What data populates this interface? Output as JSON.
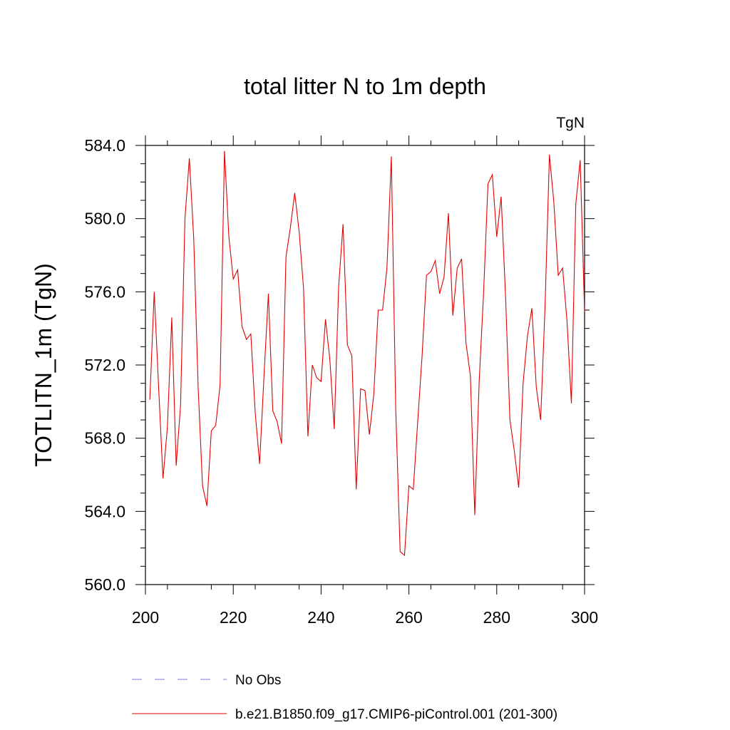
{
  "chart_data": {
    "type": "line",
    "title": "total litter N to 1m depth",
    "units_label": "TgN",
    "xlabel": "",
    "ylabel": "TOTLITN_1m  (TgN)",
    "xlim": [
      200,
      300
    ],
    "ylim": [
      560,
      584
    ],
    "x_ticks": [
      "200",
      "220",
      "240",
      "260",
      "280",
      "300"
    ],
    "y_ticks": [
      "560.0",
      "564.0",
      "568.0",
      "572.0",
      "576.0",
      "580.0",
      "584.0"
    ],
    "grid": false,
    "legend": [
      {
        "name": "No Obs",
        "color": "#7b7bd6",
        "style": "dashed"
      },
      {
        "name": "b.e21.B1850.f09_g17.CMIP6-piControl.001 (201-300)",
        "color": "#e00000",
        "style": "solid"
      }
    ],
    "series": [
      {
        "name": "b.e21.B1850.f09_g17.CMIP6-piControl.001 (201-300)",
        "color": "#e00000",
        "x": [
          201,
          202,
          203,
          204,
          205,
          206,
          207,
          208,
          209,
          210,
          211,
          212,
          213,
          214,
          215,
          216,
          217,
          218,
          219,
          220,
          221,
          222,
          223,
          224,
          225,
          226,
          227,
          228,
          229,
          230,
          231,
          232,
          233,
          234,
          235,
          236,
          237,
          238,
          239,
          240,
          241,
          242,
          243,
          244,
          245,
          246,
          247,
          248,
          249,
          250,
          251,
          252,
          253,
          254,
          255,
          256,
          257,
          258,
          259,
          260,
          261,
          262,
          263,
          264,
          265,
          266,
          267,
          268,
          269,
          270,
          271,
          272,
          273,
          274,
          275,
          276,
          277,
          278,
          279,
          280,
          281,
          282,
          283,
          284,
          285,
          286,
          287,
          288,
          289,
          290,
          291,
          292,
          293,
          294,
          295,
          296,
          297,
          298,
          299,
          300
        ],
        "values": [
          570.1,
          576.0,
          570.8,
          565.8,
          568.6,
          574.6,
          566.5,
          569.8,
          580.0,
          583.3,
          578.9,
          570.8,
          565.4,
          564.3,
          568.4,
          568.7,
          570.9,
          583.7,
          579.0,
          576.7,
          577.2,
          574.1,
          573.4,
          573.7,
          569.4,
          566.6,
          571.4,
          575.9,
          569.5,
          568.9,
          567.7,
          577.9,
          579.5,
          581.4,
          579.3,
          576.2,
          568.1,
          572.0,
          571.3,
          571.1,
          574.5,
          572.3,
          568.5,
          576.3,
          579.7,
          573.1,
          572.5,
          565.2,
          570.7,
          570.6,
          568.2,
          570.4,
          575.0,
          575.0,
          577.3,
          583.4,
          569.6,
          561.8,
          561.6,
          565.4,
          565.2,
          568.9,
          572.5,
          576.9,
          577.1,
          577.7,
          575.9,
          576.8,
          580.3,
          574.7,
          577.3,
          577.8,
          573.2,
          571.4,
          563.8,
          571.1,
          575.9,
          581.9,
          582.4,
          579.0,
          581.2,
          575.8,
          569.0,
          567.3,
          565.3,
          571.0,
          573.6,
          575.1,
          570.8,
          569.0,
          575.2,
          583.5,
          580.9,
          576.9,
          577.3,
          574.4,
          569.9,
          580.8,
          583.2,
          574.9
        ]
      }
    ]
  }
}
